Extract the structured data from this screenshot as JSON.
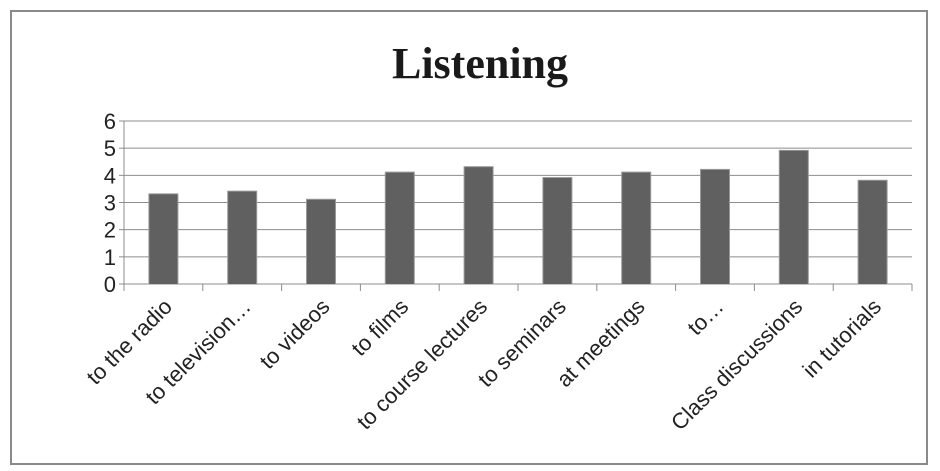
{
  "chart_data": {
    "type": "bar",
    "title": "Listening",
    "categories": [
      "to the radio",
      "to television…",
      "to videos",
      "to films",
      "to course lectures",
      "to seminars",
      "at meetings",
      "to…",
      "Class discussions",
      "in tutorials"
    ],
    "values": [
      3.3,
      3.4,
      3.1,
      4.1,
      4.3,
      3.9,
      4.1,
      4.2,
      4.9,
      3.8
    ],
    "y_ticks": [
      "0",
      "1",
      "2",
      "3",
      "4",
      "5",
      "6"
    ],
    "ylim": [
      0,
      6
    ],
    "grid": true,
    "legend": "none",
    "colors": {
      "bar": "#606060",
      "grid": "#8c8c8c"
    }
  }
}
